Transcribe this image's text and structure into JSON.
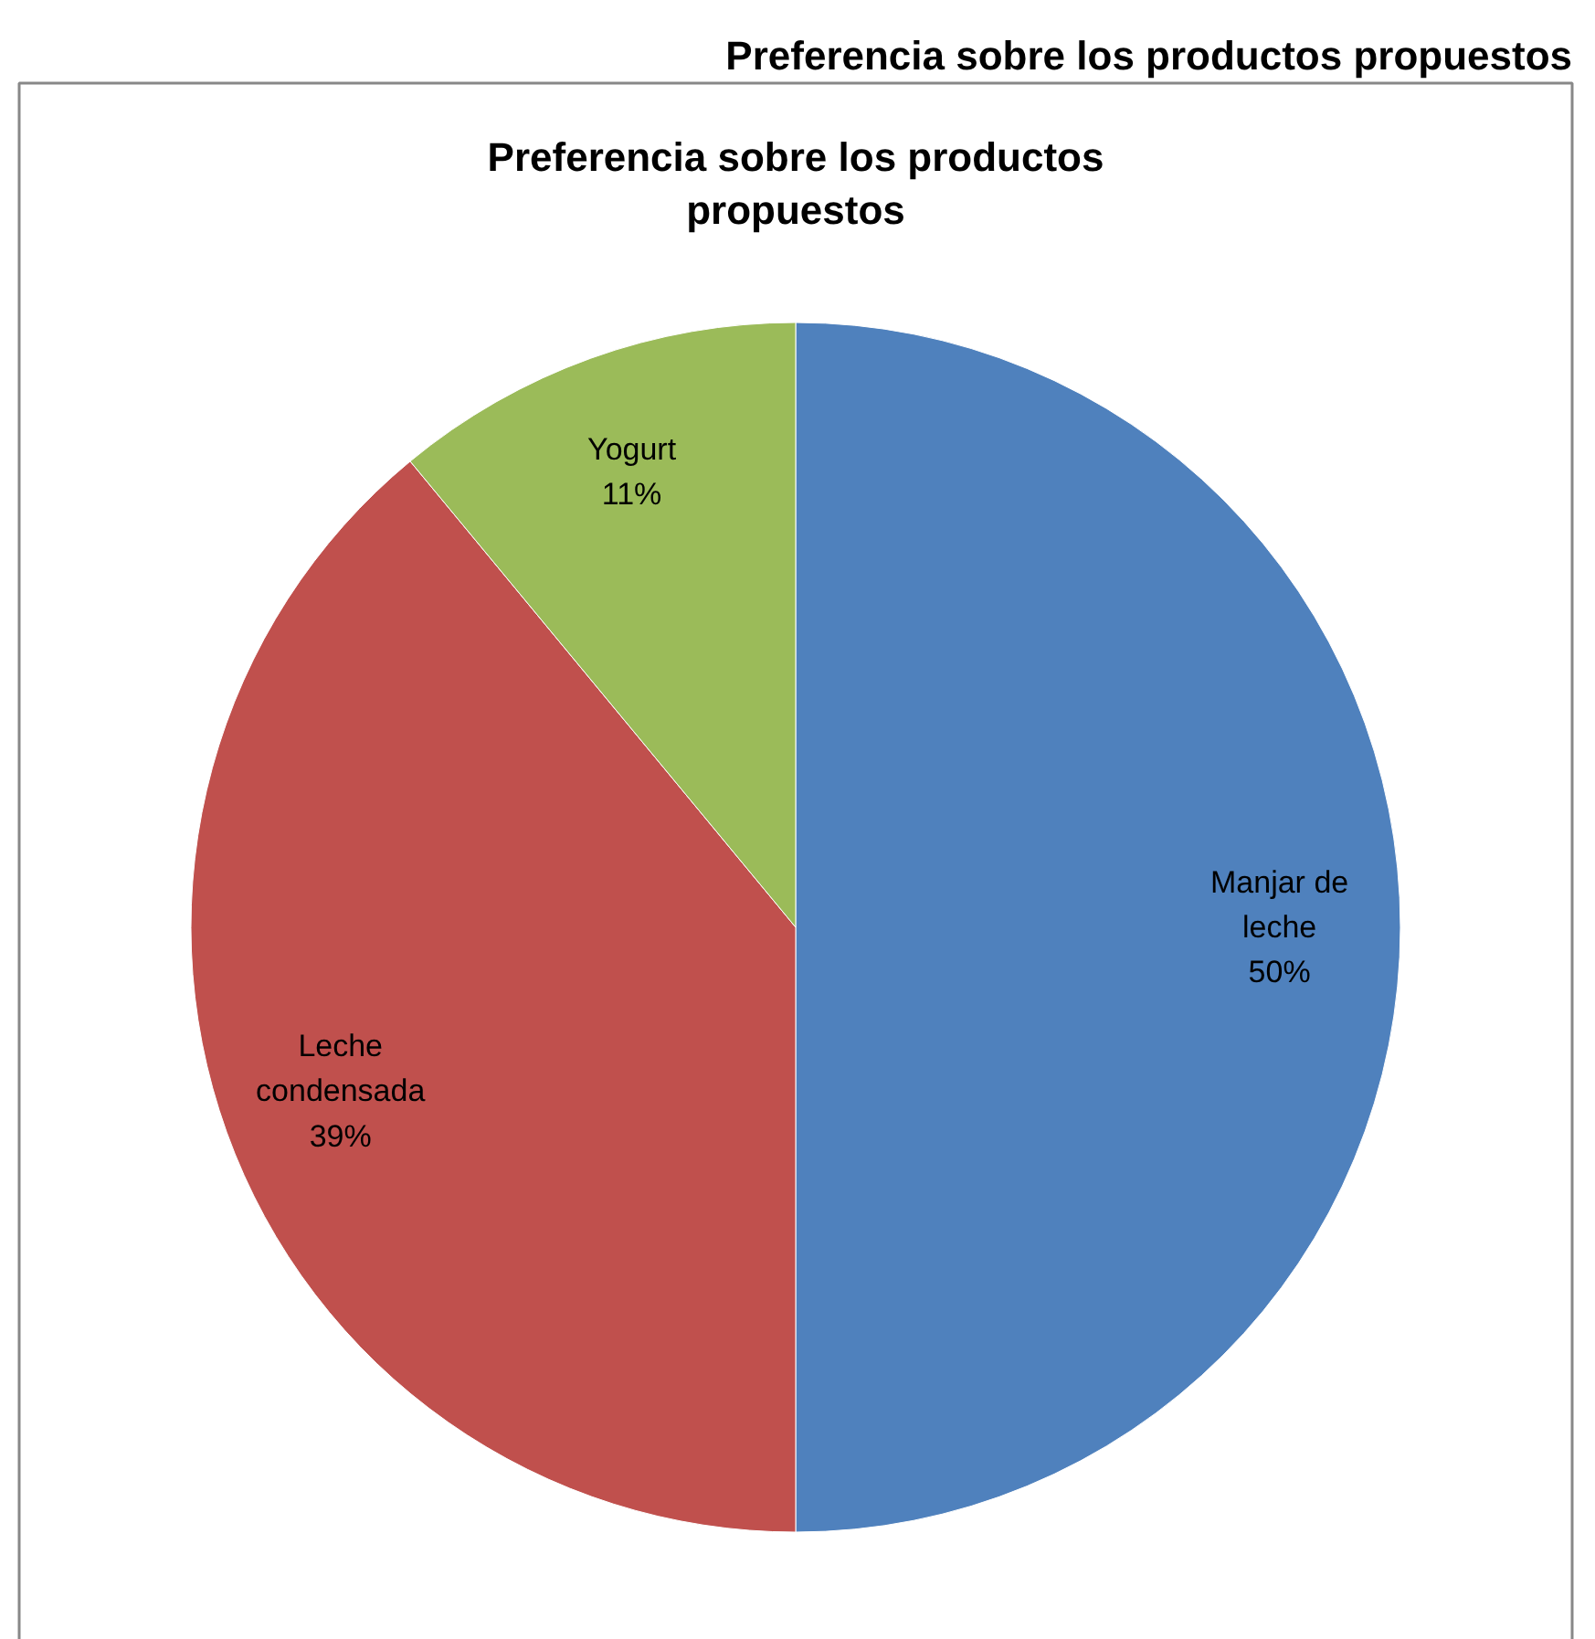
{
  "chart_data": {
    "type": "pie",
    "title": "Preferencia sobre los productos propuestos",
    "subtitle": "Preferencia sobre los productos propuestos",
    "categories": [
      "Manjar de leche",
      "Leche condensada",
      "Yogurt"
    ],
    "values": [
      50,
      39,
      11
    ],
    "colors": [
      "#4f81bd",
      "#c0504d",
      "#9bbb59"
    ],
    "value_labels": [
      "50%",
      "39%",
      "11%"
    ]
  }
}
